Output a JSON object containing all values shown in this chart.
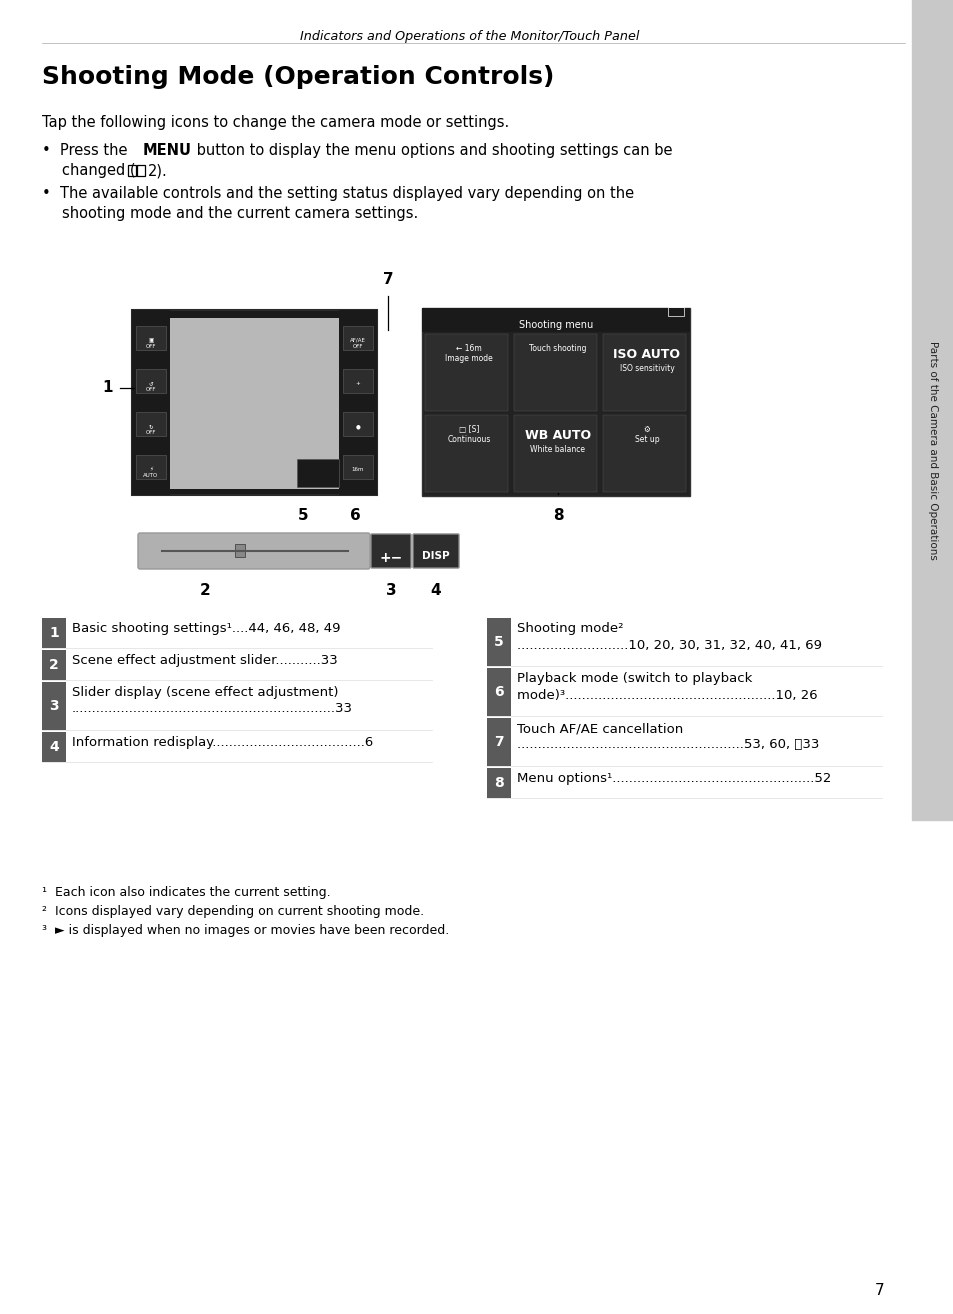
{
  "page_title": "Indicators and Operations of the Monitor/Touch Panel",
  "section_title": "Shooting Mode (Operation Controls)",
  "intro_text": "Tap the following icons to change the camera mode or settings.",
  "page_num": "7",
  "sidebar_text": "Parts of the Camera and Basic Operations",
  "bg_color": "#ffffff",
  "sidebar_color": "#c8c8c8",
  "table_num_bg": "#5a5a5a",
  "table_num_color": "#ffffff",
  "cam_body": "#1a1a1a",
  "cam_screen": "#b8b8b8",
  "menu_bg": "#222222",
  "menu_item_bg": "#2d2d2d"
}
